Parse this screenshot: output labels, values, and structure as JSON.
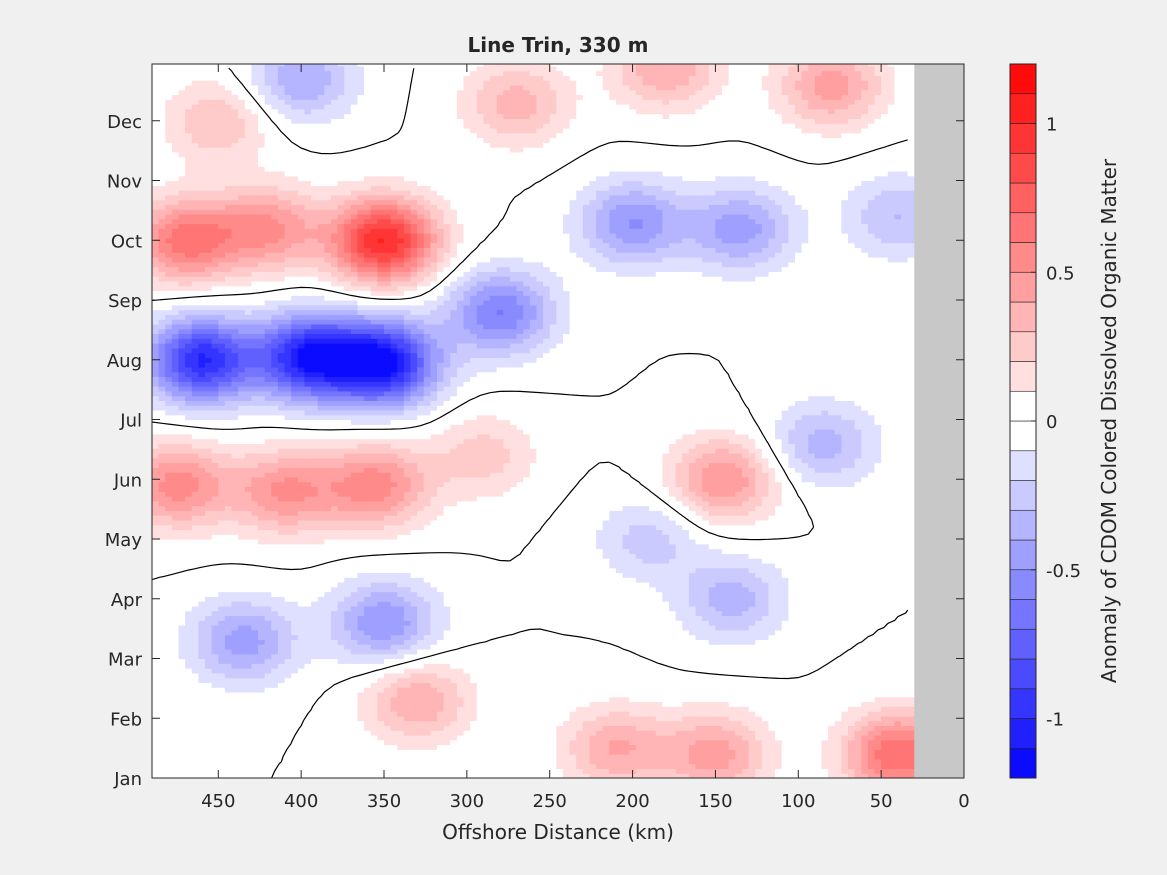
{
  "chart_data": {
    "type": "heatmap",
    "title": "Line Trin, 330 m",
    "xlabel": "Offshore Distance (km)",
    "ylabel": "",
    "colorbar_label": "Anomaly of CDOM Colored Dissolved Organic Matter",
    "xlim": [
      490,
      0
    ],
    "x_reversed": true,
    "xticks": [
      450,
      400,
      350,
      300,
      250,
      200,
      150,
      100,
      50,
      0
    ],
    "ytick_labels": [
      "Jan",
      "Feb",
      "Mar",
      "Apr",
      "May",
      "Jun",
      "Jul",
      "Aug",
      "Sep",
      "Oct",
      "Nov",
      "Dec"
    ],
    "ylim": [
      1,
      12.95
    ],
    "clim": [
      -1.2,
      1.2
    ],
    "colorbar_ticks": [
      {
        "value": 1,
        "label": "1"
      },
      {
        "value": 0.5,
        "label": "0.5"
      },
      {
        "value": 0,
        "label": "0"
      },
      {
        "value": -0.5,
        "label": "-0.5"
      },
      {
        "value": -1,
        "label": "-1"
      }
    ],
    "contour_levels": 24,
    "zero_contour": true,
    "masked_region_km": [
      30,
      0
    ],
    "colors": {
      "negative": "#0000ff",
      "positive": "#ff0000",
      "neutral": "#ffffff",
      "mask": "#c8c8c8"
    },
    "field_x": [
      490,
      480,
      470,
      460,
      450,
      440,
      430,
      420,
      410,
      400,
      390,
      380,
      370,
      360,
      350,
      340,
      330,
      320,
      310,
      300,
      290,
      280,
      270,
      260,
      250,
      240,
      230,
      220,
      210,
      200,
      190,
      180,
      170,
      160,
      150,
      140,
      130,
      120,
      110,
      100,
      90,
      80,
      70,
      60,
      50,
      40,
      30
    ],
    "field_y": [
      1,
      1.5,
      2,
      2.5,
      3,
      3.5,
      4,
      4.5,
      5,
      5.5,
      6,
      6.5,
      7,
      7.5,
      8,
      8.5,
      9,
      9.5,
      10,
      10.5,
      11,
      11.5,
      12,
      12.5,
      12.95
    ],
    "centers": [
      {
        "x": 460,
        "y": 8.0,
        "amp": -1.0
      },
      {
        "x": 395,
        "y": 8.05,
        "amp": -1.05
      },
      {
        "x": 350,
        "y": 7.95,
        "amp": -1.1
      },
      {
        "x": 280,
        "y": 8.8,
        "amp": -0.6
      },
      {
        "x": 200,
        "y": 10.3,
        "amp": -0.5
      },
      {
        "x": 135,
        "y": 10.2,
        "amp": -0.45
      },
      {
        "x": 40,
        "y": 10.4,
        "amp": -0.3
      },
      {
        "x": 190,
        "y": 5.0,
        "amp": -0.25
      },
      {
        "x": 140,
        "y": 4.0,
        "amp": -0.35
      },
      {
        "x": 350,
        "y": 3.6,
        "amp": -0.5
      },
      {
        "x": 435,
        "y": 3.3,
        "amp": -0.45
      },
      {
        "x": 85,
        "y": 6.6,
        "amp": -0.35
      },
      {
        "x": 400,
        "y": 12.7,
        "amp": -0.4
      },
      {
        "x": 350,
        "y": 10.0,
        "amp": 1.0
      },
      {
        "x": 470,
        "y": 10.0,
        "amp": 0.65
      },
      {
        "x": 420,
        "y": 10.2,
        "amp": 0.5
      },
      {
        "x": 475,
        "y": 5.9,
        "amp": 0.55
      },
      {
        "x": 410,
        "y": 5.8,
        "amp": 0.5
      },
      {
        "x": 355,
        "y": 5.9,
        "amp": 0.55
      },
      {
        "x": 290,
        "y": 6.4,
        "amp": 0.25
      },
      {
        "x": 145,
        "y": 6.0,
        "amp": 0.5
      },
      {
        "x": 40,
        "y": 1.4,
        "amp": 0.7
      },
      {
        "x": 150,
        "y": 1.4,
        "amp": 0.45
      },
      {
        "x": 210,
        "y": 1.5,
        "amp": 0.4
      },
      {
        "x": 330,
        "y": 2.3,
        "amp": 0.4
      },
      {
        "x": 80,
        "y": 12.6,
        "amp": 0.45
      },
      {
        "x": 180,
        "y": 12.9,
        "amp": 0.4
      },
      {
        "x": 270,
        "y": 12.3,
        "amp": 0.35
      },
      {
        "x": 450,
        "y": 12.0,
        "amp": 0.3
      }
    ]
  }
}
